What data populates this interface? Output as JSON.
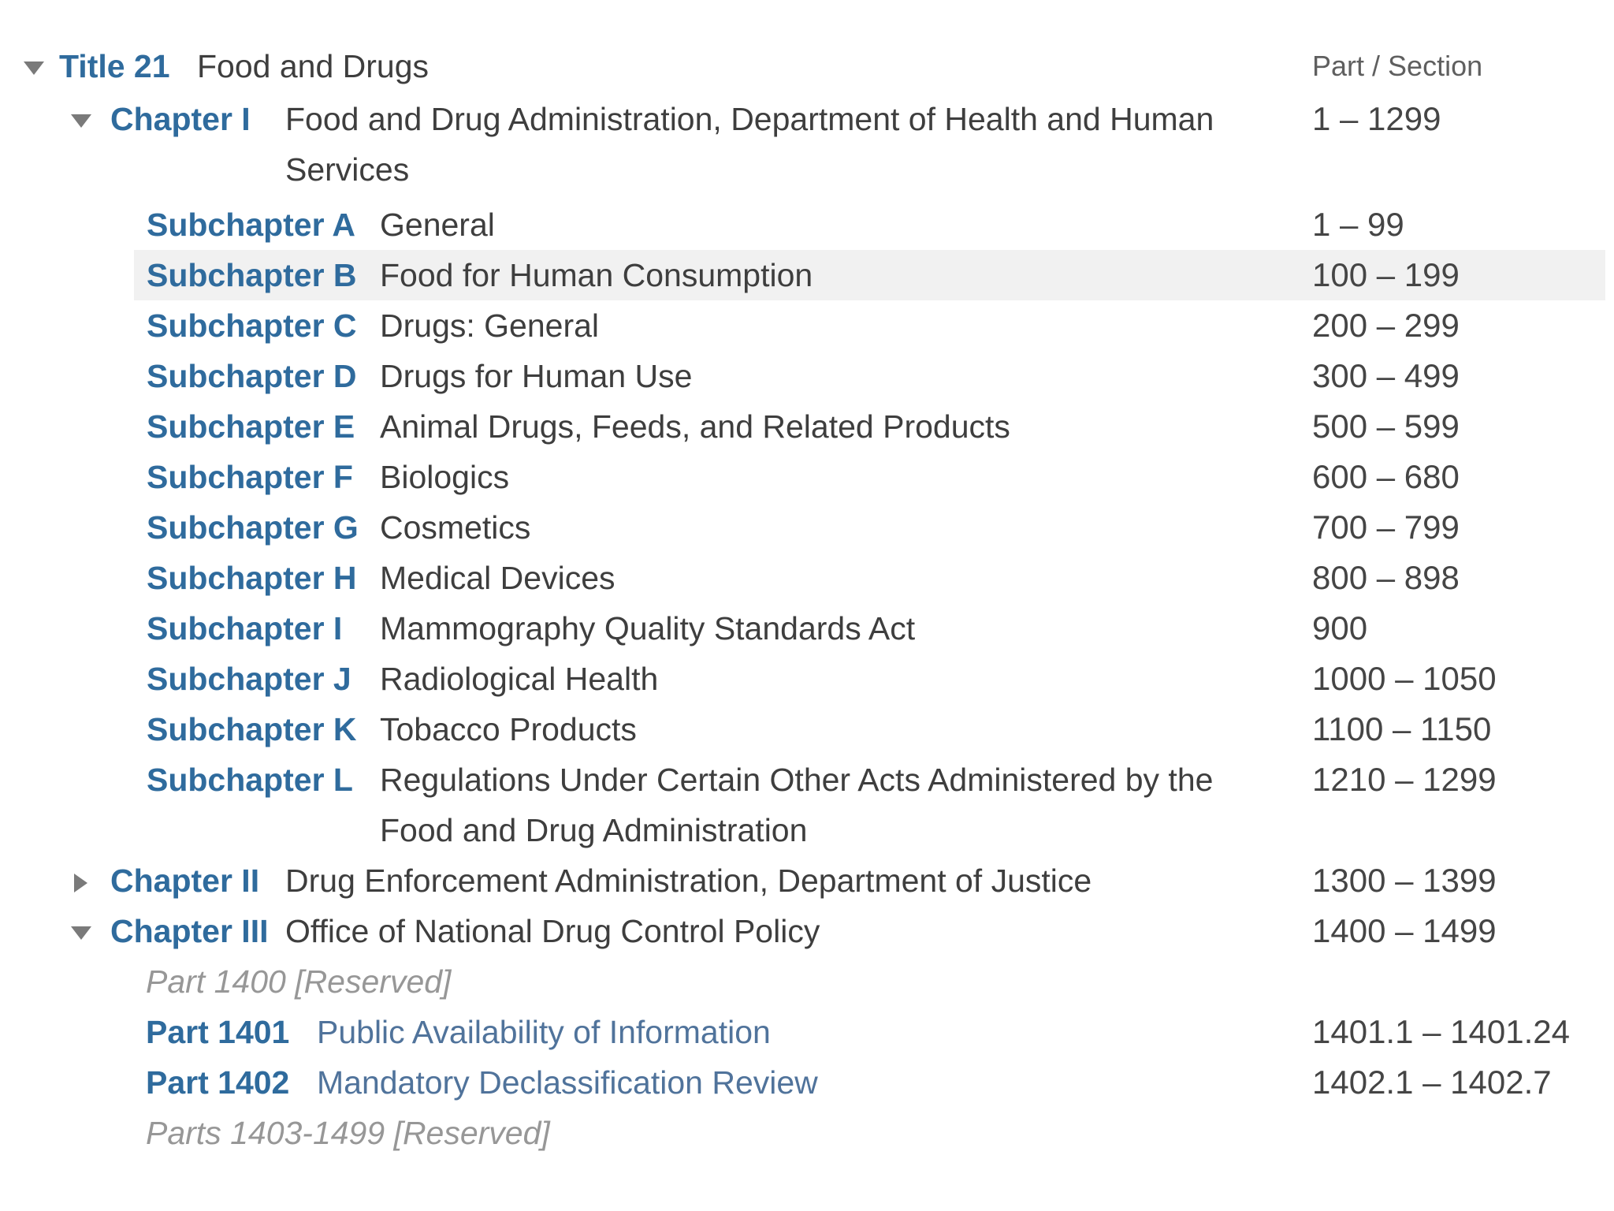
{
  "header": {
    "part_section_label": "Part / Section"
  },
  "colors": {
    "label_blue": "#2f6b9d",
    "link_blue": "#50739b",
    "body_text": "#3e3e3e",
    "muted_gray": "#979797",
    "highlight_row": "#f1f1f1",
    "toggle_gray": "#7a7a7a"
  },
  "tree": {
    "rows": [
      {
        "level": "title",
        "toggle": "down",
        "label": "Title 21",
        "title": "Food and Drugs",
        "range": ""
      },
      {
        "level": "chapter",
        "toggle": "down",
        "label": "Chapter I",
        "title": "Food and Drug Administration, Department of Health and Human Services",
        "range": "1 – 1299",
        "gap_after": true
      },
      {
        "level": "subchapter",
        "toggle": null,
        "label": "Subchapter A",
        "title": "General",
        "range": "1 – 99"
      },
      {
        "level": "subchapter",
        "toggle": null,
        "label": "Subchapter B",
        "title": "Food for Human Consumption",
        "range": "100 – 199",
        "highlighted": true
      },
      {
        "level": "subchapter",
        "toggle": null,
        "label": "Subchapter C",
        "title": "Drugs: General",
        "range": "200 – 299"
      },
      {
        "level": "subchapter",
        "toggle": null,
        "label": "Subchapter D",
        "title": "Drugs for Human Use",
        "range": "300 – 499"
      },
      {
        "level": "subchapter",
        "toggle": null,
        "label": "Subchapter E",
        "title": "Animal Drugs, Feeds, and Related Products",
        "range": "500 – 599"
      },
      {
        "level": "subchapter",
        "toggle": null,
        "label": "Subchapter F",
        "title": "Biologics",
        "range": "600 – 680"
      },
      {
        "level": "subchapter",
        "toggle": null,
        "label": "Subchapter G",
        "title": "Cosmetics",
        "range": "700 – 799"
      },
      {
        "level": "subchapter",
        "toggle": null,
        "label": "Subchapter H",
        "title": "Medical Devices",
        "range": "800 – 898"
      },
      {
        "level": "subchapter",
        "toggle": null,
        "label": "Subchapter I",
        "title": "Mammography Quality Standards Act",
        "range": "900"
      },
      {
        "level": "subchapter",
        "toggle": null,
        "label": "Subchapter J",
        "title": "Radiological Health",
        "range": "1000 – 1050"
      },
      {
        "level": "subchapter",
        "toggle": null,
        "label": "Subchapter K",
        "title": "Tobacco Products",
        "range": "1100 – 1150"
      },
      {
        "level": "subchapter",
        "toggle": null,
        "label": "Subchapter L",
        "title": "Regulations Under Certain Other Acts Administered by the Food and Drug Administration",
        "range": "1210 – 1299"
      },
      {
        "level": "chapter",
        "toggle": "right",
        "label": "Chapter II",
        "title": "Drug Enforcement Administration, Department of Justice",
        "range": "1300 – 1399"
      },
      {
        "level": "chapter",
        "toggle": "down",
        "label": "Chapter III",
        "title": "Office of National Drug Control Policy",
        "range": "1400 – 1499"
      },
      {
        "level": "reserved",
        "toggle": null,
        "label": "",
        "title": "Part 1400 [Reserved]",
        "range": ""
      },
      {
        "level": "part",
        "toggle": null,
        "label": "Part 1401",
        "title": "Public Availability of Information",
        "range": "1401.1 – 1401.24"
      },
      {
        "level": "part",
        "toggle": null,
        "label": "Part 1402",
        "title": "Mandatory Declassification Review",
        "range": "1402.1 – 1402.7"
      },
      {
        "level": "reserved",
        "toggle": null,
        "label": "",
        "title": "Parts 1403-1499 [Reserved]",
        "range": ""
      }
    ]
  }
}
